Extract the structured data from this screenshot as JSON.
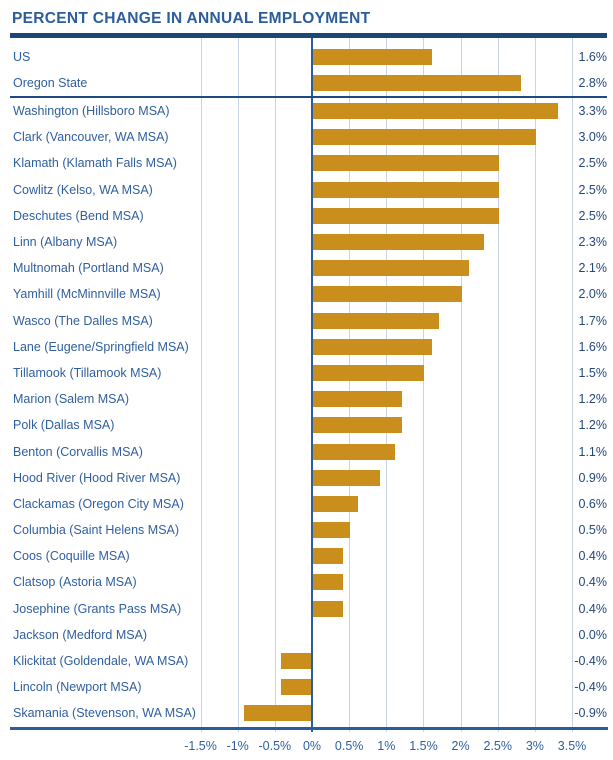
{
  "title": "PERCENT CHANGE IN ANNUAL EMPLOYMENT",
  "colors": {
    "title_text": "#2B5C9B",
    "title_rule": "#1A4678",
    "separator": "#1E4C82",
    "axis_line": "#2B5C9E",
    "zero_line": "#2A5C9F",
    "gridline": "#C9D5E7",
    "bar": "#C98E1B",
    "row_label": "#2F5F9F",
    "value_label": "#24477C",
    "axis_label": "#2F5F9F"
  },
  "chart_data": {
    "type": "bar",
    "orientation": "horizontal",
    "title": "PERCENT CHANGE IN ANNUAL EMPLOYMENT",
    "xlabel": "",
    "ylabel": "",
    "unit": "%",
    "axis_range": [
      -1.5,
      3.5
    ],
    "grid": true,
    "x_tick_values": [
      -1.5,
      -1,
      -0.5,
      0,
      0.5,
      1,
      1.5,
      2,
      2.5,
      3,
      3.5
    ],
    "x_tick_labels": [
      "-1.5%",
      "-1%",
      "-0.5%",
      "0%",
      "0.5%",
      "1%",
      "1.5%",
      "2%",
      "2.5%",
      "3%",
      "3.5%"
    ],
    "groups": [
      {
        "name": "summary",
        "rows": [
          {
            "label": "US",
            "value": 1.6,
            "display": "1.6%"
          },
          {
            "label": "Oregon State",
            "value": 2.8,
            "display": "2.8%"
          }
        ]
      },
      {
        "name": "counties",
        "rows": [
          {
            "label": "Washington (Hillsboro MSA)",
            "value": 3.3,
            "display": "3.3%"
          },
          {
            "label": "Clark (Vancouver, WA MSA)",
            "value": 3.0,
            "display": "3.0%"
          },
          {
            "label": "Klamath (Klamath Falls MSA)",
            "value": 2.5,
            "display": "2.5%"
          },
          {
            "label": "Cowlitz (Kelso, WA MSA)",
            "value": 2.5,
            "display": "2.5%"
          },
          {
            "label": "Deschutes (Bend MSA)",
            "value": 2.5,
            "display": "2.5%"
          },
          {
            "label": "Linn (Albany MSA)",
            "value": 2.3,
            "display": "2.3%"
          },
          {
            "label": "Multnomah (Portland MSA)",
            "value": 2.1,
            "display": "2.1%"
          },
          {
            "label": "Yamhill (McMinnville MSA)",
            "value": 2.0,
            "display": "2.0%"
          },
          {
            "label": "Wasco (The Dalles MSA)",
            "value": 1.7,
            "display": "1.7%"
          },
          {
            "label": "Lane (Eugene/Springfield MSA)",
            "value": 1.6,
            "display": "1.6%"
          },
          {
            "label": "Tillamook (Tillamook MSA)",
            "value": 1.5,
            "display": "1.5%"
          },
          {
            "label": "Marion (Salem MSA)",
            "value": 1.2,
            "display": "1.2%"
          },
          {
            "label": "Polk (Dallas MSA)",
            "value": 1.2,
            "display": "1.2%"
          },
          {
            "label": "Benton (Corvallis MSA)",
            "value": 1.1,
            "display": "1.1%"
          },
          {
            "label": "Hood River (Hood River MSA)",
            "value": 0.9,
            "display": "0.9%"
          },
          {
            "label": "Clackamas (Oregon City MSA)",
            "value": 0.6,
            "display": "0.6%"
          },
          {
            "label": "Columbia (Saint Helens MSA)",
            "value": 0.5,
            "display": "0.5%"
          },
          {
            "label": "Coos (Coquille MSA)",
            "value": 0.4,
            "display": "0.4%"
          },
          {
            "label": "Clatsop (Astoria MSA)",
            "value": 0.4,
            "display": "0.4%"
          },
          {
            "label": "Josephine (Grants Pass MSA)",
            "value": 0.4,
            "display": "0.4%"
          },
          {
            "label": "Jackson (Medford MSA)",
            "value": 0.0,
            "display": "0.0%"
          },
          {
            "label": "Klickitat (Goldendale, WA MSA)",
            "value": -0.4,
            "display": "-0.4%"
          },
          {
            "label": "Lincoln (Newport MSA)",
            "value": -0.4,
            "display": "-0.4%"
          },
          {
            "label": "Skamania (Stevenson, WA MSA)",
            "value": -0.9,
            "display": "-0.9%"
          }
        ]
      }
    ]
  }
}
